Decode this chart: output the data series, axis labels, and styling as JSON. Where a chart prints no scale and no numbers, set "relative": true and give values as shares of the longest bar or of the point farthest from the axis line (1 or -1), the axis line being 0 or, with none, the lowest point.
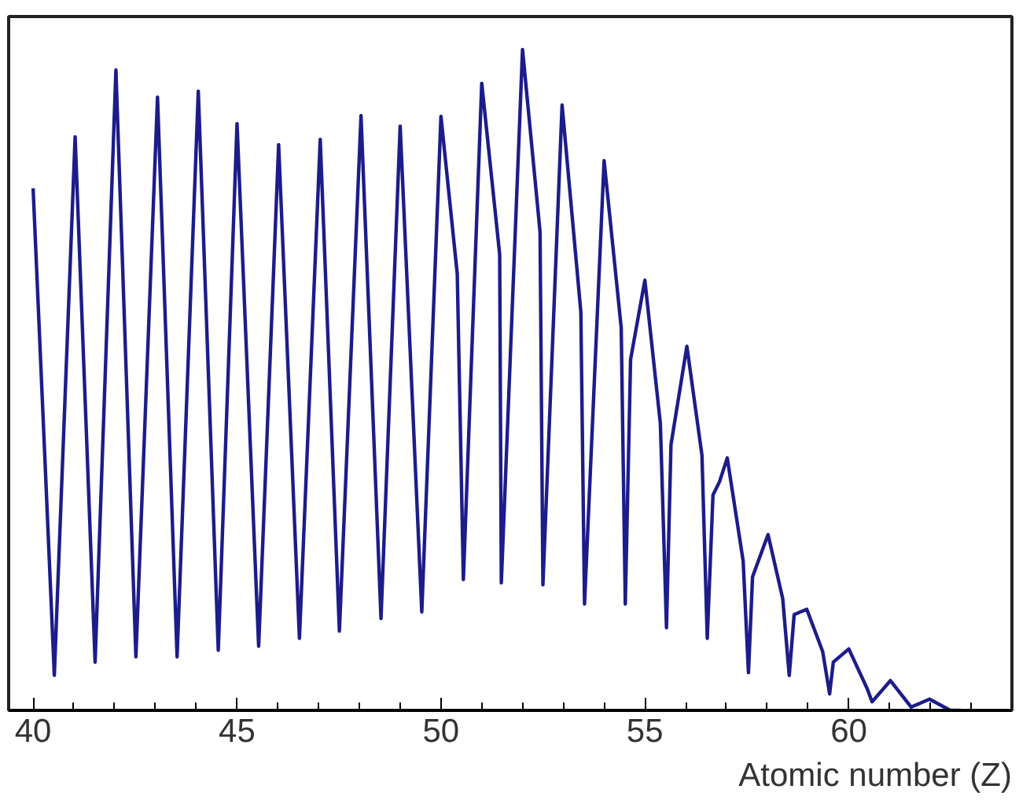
{
  "chart_data": {
    "type": "line",
    "relative": true,
    "xlabel": "Atomic number (Z)",
    "xlim": [
      39.4,
      64
    ],
    "xticks": [
      40,
      {
        "value": 41,
        "label": null
      },
      {
        "value": 42,
        "label": null
      },
      {
        "value": 43,
        "label": null
      },
      {
        "value": 44,
        "label": null
      },
      45,
      {
        "value": 46,
        "label": null
      },
      {
        "value": 47,
        "label": null
      },
      {
        "value": 48,
        "label": null
      },
      {
        "value": 49,
        "label": null
      },
      50,
      {
        "value": 51,
        "label": null
      },
      {
        "value": 52,
        "label": null
      },
      {
        "value": 53,
        "label": null
      },
      {
        "value": 54,
        "label": null
      },
      55,
      {
        "value": 56,
        "label": null
      },
      {
        "value": 57,
        "label": null
      },
      {
        "value": 58,
        "label": null
      },
      {
        "value": 59,
        "label": null
      },
      60,
      {
        "value": 61,
        "label": null
      },
      {
        "value": 62,
        "label": null
      },
      {
        "value": 63,
        "label": null
      }
    ],
    "tick_labels": "x",
    "grid": false,
    "series": [
      {
        "color": "#1c1c8a",
        "x": [
          40.0,
          40.52,
          41.03,
          41.52,
          42.03,
          42.52,
          43.05,
          43.53,
          44.05,
          44.54,
          45.0,
          45.53,
          46.02,
          46.53,
          47.04,
          47.51,
          48.04,
          48.53,
          49.0,
          49.53,
          50.0,
          50.4,
          50.55,
          51.0,
          51.44,
          51.48,
          52.0,
          52.43,
          52.5,
          52.97,
          53.43,
          53.52,
          54.0,
          54.42,
          54.52,
          54.65,
          55.0,
          55.38,
          55.53,
          55.64,
          56.03,
          56.4,
          56.53,
          56.67,
          56.83,
          57.02,
          57.41,
          57.54,
          57.64,
          58.02,
          58.38,
          58.54,
          58.66,
          58.97,
          59.36,
          59.53,
          59.62,
          60.0,
          60.45,
          60.57,
          61.02,
          61.53,
          61.98,
          62.49,
          62.75
        ],
        "values": [
          0.79,
          0.053,
          0.868,
          0.073,
          0.969,
          0.081,
          0.928,
          0.081,
          0.937,
          0.091,
          0.888,
          0.097,
          0.856,
          0.109,
          0.864,
          0.12,
          0.9,
          0.139,
          0.884,
          0.149,
          0.899,
          0.66,
          0.198,
          0.949,
          0.69,
          0.193,
          1.0,
          0.724,
          0.19,
          0.916,
          0.603,
          0.161,
          0.832,
          0.579,
          0.161,
          0.531,
          0.651,
          0.434,
          0.125,
          0.402,
          0.551,
          0.386,
          0.109,
          0.326,
          0.346,
          0.382,
          0.226,
          0.057,
          0.202,
          0.266,
          0.169,
          0.053,
          0.145,
          0.153,
          0.089,
          0.025,
          0.073,
          0.093,
          0.033,
          0.013,
          0.045,
          0.005,
          0.017,
          0.0,
          0.0
        ]
      }
    ]
  }
}
